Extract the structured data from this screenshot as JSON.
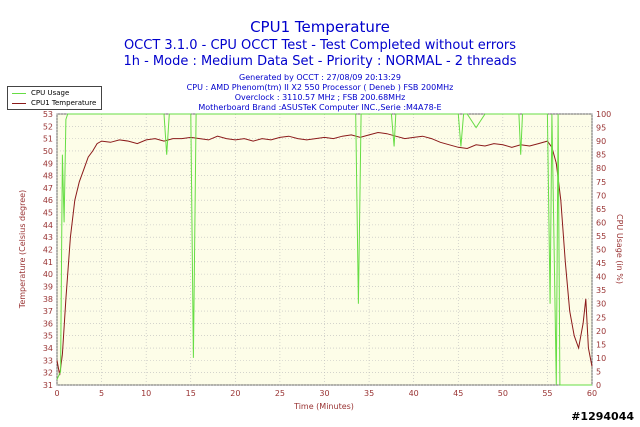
{
  "header": {
    "title": "CPU1 Temperature",
    "subtitle1": "OCCT 3.1.0 - CPU OCCT Test - Test Completed without errors",
    "subtitle2": "1h - Mode : Medium Data Set - Priority : NORMAL - 2 threads",
    "info": [
      "Generated by OCCT : 27/08/09 20:13:29",
      "CPU : AMD Phenom(tm) II X2 550 Processor ( Deneb ) FSB 200MHz",
      "Overclock : 3110.57 MHz ; FSB 200.68MHz",
      "Motherboard Brand :ASUSTeK Computer INC.,Serie :M4A78-E"
    ]
  },
  "colors": {
    "title": "#0000cc",
    "info": "#0000cc",
    "axis_text": "#993333",
    "cpu_usage": "#66dd44",
    "temperature": "#8b1a1a",
    "plot_bg": "#fdfde8",
    "grid": "#bbbbbb"
  },
  "legend": {
    "items": [
      {
        "label": "CPU Usage",
        "color": "#66dd44"
      },
      {
        "label": "CPU1 Temperature",
        "color": "#8b1a1a"
      }
    ]
  },
  "watermark": "#1294044",
  "chart_data": {
    "type": "line",
    "xlabel": "Time (Minutes)",
    "ylabel_left": "Temperature (Celsius degree)",
    "ylabel_right": "CPU Usage (in %)",
    "xlim": [
      0,
      60
    ],
    "ylim_left": [
      31,
      53
    ],
    "ylim_right": [
      0,
      100
    ],
    "x_ticks": [
      0,
      5,
      10,
      15,
      20,
      25,
      30,
      35,
      40,
      45,
      50,
      55,
      60
    ],
    "y_ticks_left": [
      31,
      32,
      33,
      34,
      35,
      36,
      37,
      38,
      39,
      40,
      41,
      42,
      43,
      44,
      45,
      46,
      47,
      48,
      49,
      50,
      51,
      52,
      53
    ],
    "y_ticks_right": [
      0,
      5,
      10,
      15,
      20,
      25,
      30,
      35,
      40,
      45,
      50,
      55,
      60,
      65,
      70,
      75,
      80,
      85,
      90,
      95,
      100
    ],
    "grid": true,
    "series": [
      {
        "name": "CPU1 Temperature",
        "axis": "left",
        "x": [
          0,
          0.3,
          0.6,
          1,
          1.5,
          2,
          2.5,
          3,
          3.5,
          4,
          4.5,
          5,
          6,
          7,
          8,
          9,
          10,
          11,
          12,
          13,
          14,
          15,
          16,
          17,
          18,
          19,
          20,
          21,
          22,
          23,
          24,
          25,
          26,
          27,
          28,
          29,
          30,
          31,
          32,
          33,
          34,
          35,
          36,
          37,
          38,
          39,
          40,
          41,
          42,
          43,
          44,
          45,
          46,
          47,
          48,
          49,
          50,
          51,
          52,
          53,
          54,
          55,
          55.5,
          56,
          56.5,
          57,
          57.5,
          58,
          58.5,
          59,
          59.3,
          59.6,
          60
        ],
        "values": [
          33,
          31.8,
          33.5,
          38,
          43,
          46,
          47.5,
          48.5,
          49.5,
          50,
          50.6,
          50.8,
          50.7,
          50.9,
          50.8,
          50.6,
          50.9,
          51,
          50.8,
          51,
          51,
          51.1,
          51,
          50.9,
          51.2,
          51,
          50.9,
          51,
          50.8,
          51,
          50.9,
          51.1,
          51.2,
          51,
          50.9,
          51,
          51.1,
          51,
          51.2,
          51.3,
          51.1,
          51.3,
          51.5,
          51.4,
          51.2,
          51,
          51.1,
          51.2,
          51,
          50.7,
          50.5,
          50.3,
          50.2,
          50.5,
          50.4,
          50.6,
          50.5,
          50.3,
          50.5,
          50.4,
          50.6,
          50.8,
          50.3,
          49,
          46,
          41,
          37,
          35,
          34,
          36,
          38,
          34,
          32.5
        ]
      },
      {
        "name": "CPU Usage",
        "axis": "right",
        "x": [
          0,
          0.4,
          0.6,
          0.8,
          1,
          1.2,
          2,
          4,
          6,
          8,
          10,
          12,
          12.3,
          12.6,
          13,
          15,
          15.3,
          15.6,
          16,
          18,
          20,
          22,
          24,
          26,
          28,
          30,
          32,
          33.5,
          33.8,
          34.1,
          36,
          37.5,
          37.8,
          38,
          40,
          42,
          44,
          45,
          45.3,
          45.6,
          46,
          47,
          48,
          50,
          51.8,
          52,
          52.2,
          54,
          55,
          55.3,
          55.5,
          55.7,
          56,
          56.2,
          56.4,
          56.6,
          57,
          58,
          60
        ],
        "values": [
          2,
          5,
          85,
          60,
          98,
          100,
          100,
          100,
          100,
          100,
          100,
          100,
          85,
          100,
          100,
          100,
          10,
          100,
          100,
          100,
          100,
          100,
          100,
          100,
          100,
          100,
          100,
          100,
          30,
          100,
          100,
          100,
          88,
          100,
          100,
          100,
          100,
          100,
          88,
          100,
          100,
          95,
          100,
          100,
          100,
          85,
          100,
          100,
          100,
          30,
          100,
          60,
          0,
          100,
          0,
          0,
          0,
          0,
          0
        ]
      }
    ]
  }
}
